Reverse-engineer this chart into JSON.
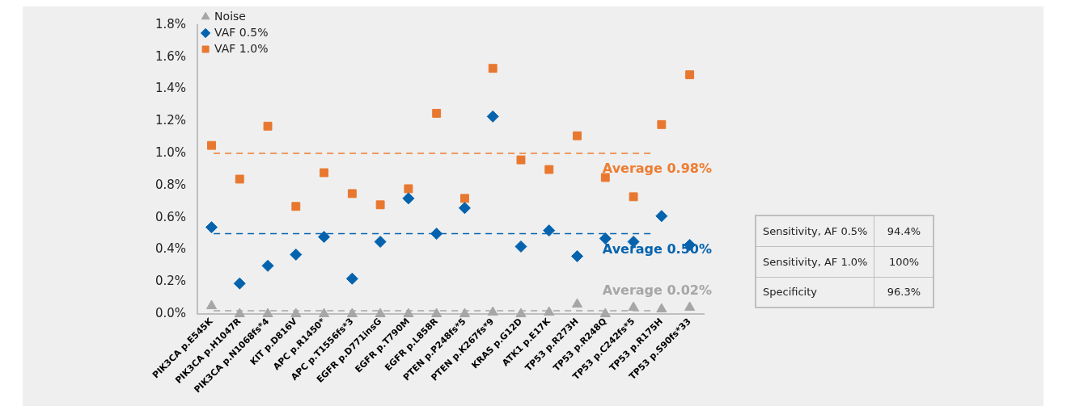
{
  "chart_data": {
    "type": "scatter",
    "categories": [
      "PIK3CA p.E545K",
      "PIK3CA p.H1047R",
      "PIK3CA p.N1068fs*4",
      "KIT p.D816V",
      "APC p.R1450*",
      "APC p.T1556fs*3",
      "EGFR p.D771insG",
      "EGFR p.T790M",
      "EGFR p.L858R",
      "PTEN p.P248fs*5",
      "PTEN p.K267fs*9",
      "KRAS p.G12D",
      "ATK1 p.E17K",
      "TP53 p.R273H",
      "TP53 p.R248Q",
      "TP53 p.C242fs*5",
      "TP53 p.R175H",
      "TP53 p.S90fs*33"
    ],
    "series": [
      {
        "name": "Noise",
        "color": "#a6a6a6",
        "marker": "triangle",
        "values": [
          0.05,
          0,
          0,
          0,
          0,
          0,
          0,
          0,
          0,
          0,
          0.01,
          0,
          0.01,
          0.06,
          0,
          0.04,
          0.03,
          0.04
        ]
      },
      {
        "name": "VAF 0.5%",
        "color": "#0563ae",
        "marker": "diamond",
        "values": [
          0.54,
          0.19,
          0.3,
          0.37,
          0.48,
          0.22,
          0.45,
          0.72,
          0.5,
          0.66,
          1.23,
          0.42,
          0.52,
          0.36,
          0.47,
          0.45,
          0.61,
          0.43
        ]
      },
      {
        "name": "VAF 1.0%",
        "color": "#e8782f",
        "marker": "square",
        "values": [
          1.05,
          0.84,
          1.17,
          0.67,
          0.88,
          0.75,
          0.68,
          0.78,
          1.25,
          0.72,
          1.53,
          0.96,
          0.9,
          1.11,
          0.85,
          0.73,
          1.18,
          1.49
        ]
      }
    ],
    "ylim": [
      0,
      1.8
    ],
    "yticks": [
      {
        "value": 0,
        "label": "0.0%"
      },
      {
        "value": 0.2,
        "label": "0.2%"
      },
      {
        "value": 0.4,
        "label": "0.4%"
      },
      {
        "value": 0.6,
        "label": "0.6%"
      },
      {
        "value": 0.8,
        "label": "0.8%"
      },
      {
        "value": 1.0,
        "label": "1.0%"
      },
      {
        "value": 1.2,
        "label": "1.2%"
      },
      {
        "value": 1.4,
        "label": "1.4%"
      },
      {
        "value": 1.6,
        "label": "1.6%"
      },
      {
        "value": 1.8,
        "label": "1.8%"
      }
    ],
    "ref_lines": [
      {
        "axis": "y",
        "value": 1.0,
        "label": "Average 0.98%",
        "color": "#ed7d31",
        "line_style": "dashed"
      },
      {
        "axis": "y",
        "value": 0.5,
        "label": "Average 0.50%",
        "color": "#0563ae",
        "line_style": "dashed"
      },
      {
        "axis": "y",
        "value": 0.02,
        "label": "Average 0.02%",
        "color": "#a6a6a6",
        "line_style": "dashed"
      }
    ],
    "annotations": [
      "Sensitivity, AF 0.5%",
      "94.4%",
      "Sensitivity, AF 1.0%",
      "100%",
      "Specificity",
      "96.3%"
    ],
    "legend": "top left",
    "grid": false
  }
}
